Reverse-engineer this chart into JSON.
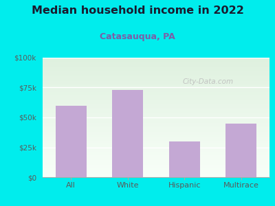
{
  "title": "Median household income in 2022",
  "subtitle": "Catasauqua, PA",
  "categories": [
    "All",
    "White",
    "Hispanic",
    "Multirace"
  ],
  "values": [
    60000,
    73000,
    30000,
    45000
  ],
  "bar_color": "#C4A8D4",
  "bg_color": "#00EDED",
  "plot_bg_top": "#dff0df",
  "plot_bg_bottom": "#f8fff8",
  "title_color": "#1a1a2e",
  "subtitle_color": "#7B5EA7",
  "tick_color": "#5a5a5a",
  "yticks": [
    0,
    25000,
    50000,
    75000,
    100000
  ],
  "ytick_labels": [
    "$0",
    "$25k",
    "$50k",
    "$75k",
    "$100k"
  ],
  "ylim": [
    0,
    100000
  ],
  "watermark": "City-Data.com",
  "watermark_color": "#bbbbbb",
  "grid_color": "#c8e6c9"
}
